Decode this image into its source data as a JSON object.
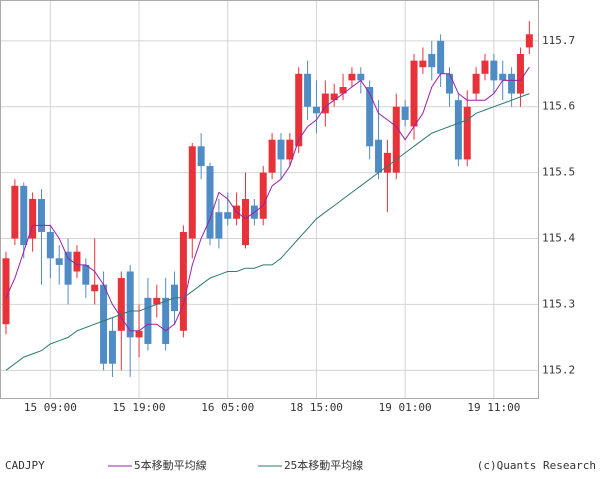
{
  "chart_data": {
    "type": "candlestick",
    "symbol": "CADJPY",
    "credit": "(c)Quants Research",
    "categories": [
      null,
      null,
      null,
      null,
      null,
      "15 09:00",
      null,
      null,
      null,
      null,
      null,
      null,
      null,
      null,
      null,
      "15 19:00",
      null,
      null,
      null,
      null,
      null,
      null,
      null,
      null,
      null,
      "16 05:00",
      null,
      null,
      null,
      null,
      null,
      null,
      null,
      null,
      null,
      "18 15:00",
      null,
      null,
      null,
      null,
      null,
      null,
      null,
      null,
      null,
      "19 01:00",
      null,
      null,
      null,
      null,
      null,
      null,
      null,
      null,
      null,
      "19 11:00",
      null,
      null,
      null,
      null
    ],
    "open": [
      115.27,
      115.4,
      115.48,
      115.4,
      115.46,
      115.41,
      115.37,
      115.38,
      115.35,
      115.36,
      115.32,
      115.33,
      115.26,
      115.26,
      115.35,
      115.25,
      115.31,
      115.3,
      115.31,
      115.33,
      115.26,
      115.4,
      115.54,
      115.51,
      115.44,
      115.44,
      115.43,
      115.39,
      115.45,
      115.43,
      115.5,
      115.55,
      115.52,
      115.54,
      115.65,
      115.6,
      115.59,
      115.61,
      115.62,
      115.64,
      115.65,
      115.63,
      115.55,
      115.5,
      115.5,
      115.6,
      115.57,
      115.66,
      115.68,
      115.7,
      115.65,
      115.61,
      115.52,
      115.62,
      115.65,
      115.67,
      115.65,
      115.65,
      115.62,
      115.69
    ],
    "high": [
      115.38,
      115.49,
      115.485,
      115.47,
      115.475,
      115.42,
      115.39,
      115.4,
      115.39,
      115.37,
      115.4,
      115.35,
      115.28,
      115.35,
      115.36,
      115.3,
      115.34,
      115.33,
      115.34,
      115.35,
      115.42,
      115.545,
      115.56,
      115.515,
      115.46,
      115.47,
      115.47,
      115.5,
      115.46,
      115.51,
      115.56,
      115.56,
      115.56,
      115.66,
      115.67,
      115.64,
      115.64,
      115.635,
      115.65,
      115.66,
      115.66,
      115.64,
      115.61,
      115.55,
      115.62,
      115.61,
      115.68,
      115.69,
      115.7,
      115.71,
      115.66,
      115.62,
      115.625,
      115.66,
      115.68,
      115.68,
      115.67,
      115.66,
      115.69,
      115.73
    ],
    "low": [
      115.255,
      115.39,
      115.37,
      115.38,
      115.33,
      115.34,
      115.33,
      115.3,
      115.34,
      115.31,
      115.3,
      115.2,
      115.19,
      115.2,
      115.19,
      115.22,
      115.23,
      115.28,
      115.23,
      115.27,
      115.25,
      115.37,
      115.49,
      115.39,
      115.385,
      115.42,
      115.42,
      115.385,
      115.42,
      115.42,
      115.49,
      115.49,
      115.51,
      115.53,
      115.58,
      115.56,
      115.57,
      115.6,
      115.61,
      115.63,
      115.62,
      115.52,
      115.49,
      115.44,
      115.49,
      115.57,
      115.55,
      115.65,
      115.64,
      115.63,
      115.6,
      115.51,
      115.51,
      115.61,
      115.64,
      115.62,
      115.61,
      115.6,
      115.6,
      115.68
    ],
    "close": [
      115.37,
      115.48,
      115.39,
      115.46,
      115.41,
      115.37,
      115.36,
      115.33,
      115.38,
      115.33,
      115.33,
      115.21,
      115.21,
      115.34,
      115.25,
      115.26,
      115.24,
      115.31,
      115.24,
      115.29,
      115.41,
      115.54,
      115.51,
      115.4,
      115.4,
      115.43,
      115.45,
      115.46,
      115.43,
      115.5,
      115.55,
      115.52,
      115.55,
      115.65,
      115.6,
      115.59,
      115.62,
      115.62,
      115.63,
      115.65,
      115.64,
      115.54,
      115.5,
      115.53,
      115.6,
      115.58,
      115.67,
      115.67,
      115.66,
      115.65,
      115.62,
      115.52,
      115.6,
      115.65,
      115.67,
      115.64,
      115.64,
      115.62,
      115.68,
      115.71
    ],
    "up_color": "#e8323a",
    "down_color": "#4f8bc4",
    "lines": [
      {
        "name": "5本移動平均線",
        "color": "#9b1fa8",
        "values": [
          115.31,
          115.34,
          115.38,
          115.42,
          115.42,
          115.42,
          115.4,
          115.37,
          115.36,
          115.36,
          115.35,
          115.33,
          115.3,
          115.28,
          115.26,
          115.26,
          115.27,
          115.27,
          115.26,
          115.27,
          115.3,
          115.36,
          115.4,
          115.43,
          115.47,
          115.46,
          115.44,
          115.43,
          115.44,
          115.45,
          115.48,
          115.49,
          115.51,
          115.55,
          115.57,
          115.58,
          115.6,
          115.61,
          115.62,
          115.63,
          115.64,
          115.62,
          115.59,
          115.58,
          115.57,
          115.55,
          115.57,
          115.59,
          115.63,
          115.65,
          115.65,
          115.62,
          115.61,
          115.61,
          115.61,
          115.62,
          115.64,
          115.64,
          115.64,
          115.66
        ]
      },
      {
        "name": "25本移動平均線",
        "color": "#2f7a72",
        "values": [
          115.2,
          115.21,
          115.22,
          115.225,
          115.23,
          115.24,
          115.245,
          115.25,
          115.26,
          115.265,
          115.27,
          115.275,
          115.28,
          115.285,
          115.29,
          115.29,
          115.295,
          115.3,
          115.305,
          115.31,
          115.31,
          115.32,
          115.33,
          115.34,
          115.345,
          115.35,
          115.35,
          115.355,
          115.355,
          115.36,
          115.36,
          115.37,
          115.385,
          115.4,
          115.415,
          115.43,
          115.44,
          115.45,
          115.46,
          115.47,
          115.48,
          115.49,
          115.5,
          115.51,
          115.52,
          115.53,
          115.54,
          115.55,
          115.56,
          115.565,
          115.57,
          115.575,
          115.58,
          115.59,
          115.595,
          115.6,
          115.605,
          115.61,
          115.615,
          115.62
        ]
      }
    ],
    "ylim": [
      115.158,
      115.762
    ],
    "yticks": [
      115.2,
      115.3,
      115.4,
      115.5,
      115.6,
      115.7
    ],
    "grid": true
  }
}
